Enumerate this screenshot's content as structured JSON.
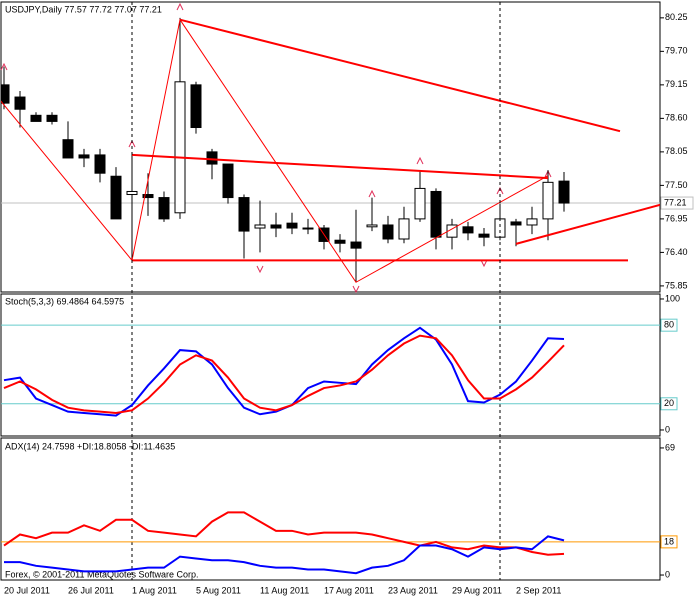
{
  "chart_data": [
    {
      "type": "candlestick",
      "title": "USDJPY,Daily  77.57 77.72 77.07 77.21",
      "categories": [
        "20 Jul 2011",
        null,
        null,
        null,
        "26 Jul 2011",
        null,
        null,
        null,
        "1 Aug 2011",
        null,
        null,
        null,
        "5 Aug 2011",
        null,
        null,
        null,
        "11 Aug 2011",
        null,
        null,
        null,
        "17 Aug 2011",
        null,
        null,
        null,
        "23 Aug 2011",
        null,
        null,
        null,
        "29 Aug 2011",
        null,
        null,
        null,
        "2 Sep 2011",
        null,
        null,
        null
      ],
      "open": [
        79.15,
        78.95,
        78.65,
        78.65,
        78.25,
        78.0,
        78.0,
        77.65,
        77.35,
        77.35,
        77.3,
        77.05,
        79.15,
        78.05,
        77.85,
        77.3,
        76.8,
        76.85,
        76.88,
        76.8,
        76.8,
        76.6,
        76.57,
        76.82,
        76.85,
        76.62,
        76.95,
        77.4,
        76.65,
        76.82,
        76.7,
        76.65,
        76.9,
        76.85,
        76.95,
        77.57
      ],
      "high": [
        79.45,
        79.05,
        78.7,
        78.7,
        78.55,
        78.1,
        78.1,
        77.8,
        78.0,
        77.7,
        77.4,
        80.25,
        79.2,
        78.1,
        77.85,
        77.35,
        77.25,
        77.05,
        77.05,
        76.95,
        76.85,
        76.7,
        77.1,
        77.3,
        77.0,
        77.15,
        77.75,
        77.45,
        76.95,
        76.9,
        76.8,
        77.2,
        76.95,
        77.15,
        77.75,
        77.72
      ],
      "low": [
        78.75,
        78.45,
        78.55,
        78.5,
        77.95,
        77.8,
        77.55,
        76.95,
        76.27,
        77.0,
        76.9,
        76.95,
        78.35,
        77.6,
        77.2,
        76.3,
        76.4,
        76.65,
        76.7,
        76.7,
        76.45,
        76.4,
        75.91,
        76.75,
        76.55,
        76.55,
        76.9,
        76.45,
        76.45,
        76.6,
        76.5,
        76.6,
        76.5,
        76.7,
        76.6,
        77.07
      ],
      "close": [
        78.85,
        78.75,
        78.55,
        78.55,
        77.95,
        77.95,
        77.7,
        76.95,
        77.4,
        77.3,
        76.95,
        79.2,
        78.45,
        77.85,
        77.3,
        76.75,
        76.85,
        76.8,
        76.8,
        76.8,
        76.58,
        76.55,
        76.47,
        76.85,
        76.62,
        76.95,
        77.45,
        76.65,
        76.85,
        76.72,
        76.65,
        76.95,
        76.85,
        76.95,
        77.55,
        77.21
      ],
      "up_color": "#ffffff",
      "down_color": "#000000",
      "ylim": [
        75.75,
        80.51
      ],
      "yticks": [
        80.25,
        {
          "value": 79.7,
          "label": "79.70"
        },
        79.15,
        {
          "value": 78.6,
          "label": "78.60"
        },
        78.05,
        {
          "value": 77.5,
          "label": "77.50"
        },
        76.95,
        {
          "value": 76.4,
          "label": "76.40"
        },
        75.85
      ],
      "last_price": 77.21,
      "vlines": [
        8,
        31
      ],
      "trendline_color": "#ff0000",
      "trendlines": [
        {
          "x": [
            11,
            38.5
          ],
          "y": [
            80.22,
            78.39
          ]
        },
        {
          "x": [
            8,
            34
          ],
          "y": [
            78.0,
            77.62
          ]
        },
        {
          "x": [
            8,
            39
          ],
          "y": [
            76.27,
            76.27
          ]
        },
        {
          "x": [
            32,
            41
          ],
          "y": [
            76.54,
            77.18
          ]
        }
      ],
      "zigzag": {
        "x": [
          -0.25,
          8,
          11,
          22,
          34
        ],
        "y": [
          78.9,
          76.27,
          80.22,
          75.91,
          77.66
        ]
      }
    },
    {
      "type": "line",
      "title": "Stoch(5,3,3) 69.4864 64.5975",
      "series": [
        {
          "color": "#0000ff",
          "values": [
            38,
            40,
            24,
            19,
            14,
            13,
            12,
            11,
            19,
            34,
            47,
            61,
            60,
            50,
            32,
            17,
            12,
            14,
            19,
            32,
            37,
            36,
            35,
            50,
            61,
            70,
            78,
            69,
            50,
            22,
            21,
            27,
            37,
            53,
            70,
            69.49
          ]
        },
        {
          "color": "#ff0000",
          "values": [
            32,
            37,
            31,
            23,
            17,
            15,
            14,
            13,
            15,
            24,
            36,
            50,
            57,
            53,
            40,
            24,
            17,
            15,
            19,
            26,
            32,
            34,
            37,
            46,
            57,
            66,
            72,
            70,
            57,
            38,
            24,
            24,
            31,
            40,
            52,
            64.6
          ]
        }
      ],
      "ylim": [
        -4.6,
        103.8
      ],
      "yticks": [
        0,
        100
      ],
      "levels": [
        80,
        20
      ],
      "level_color": "#66cccc"
    },
    {
      "type": "line",
      "title": "ADX(14) 24.7598 +DI:18.8058 -DI:11.4635",
      "series": [
        {
          "color": "#ff0000",
          "values": [
            16,
            22,
            20,
            23,
            23,
            27,
            24,
            30,
            30,
            24,
            23,
            22,
            21,
            29,
            34,
            34,
            29,
            24,
            24,
            22,
            23,
            23,
            23,
            22,
            20,
            18,
            16,
            18,
            15,
            14,
            16,
            15,
            15,
            12.5,
            11,
            11.46
          ]
        },
        {
          "color": "#0000ff",
          "values": [
            7,
            7,
            5,
            4,
            3,
            2,
            2,
            2,
            3,
            4,
            4,
            10,
            9,
            8,
            8,
            7,
            5,
            4,
            4,
            3,
            3,
            2,
            1,
            4,
            5,
            8,
            16,
            16,
            14,
            10,
            15,
            14,
            15,
            14,
            21,
            18.81
          ]
        }
      ],
      "ylim": [
        -2.7,
        74.4
      ],
      "yticks": [
        0,
        69
      ],
      "levels": [
        18
      ],
      "level_color": "#ff9900"
    }
  ],
  "footer": "Forex, © 2001-2011 MetaQuotes Software Corp."
}
